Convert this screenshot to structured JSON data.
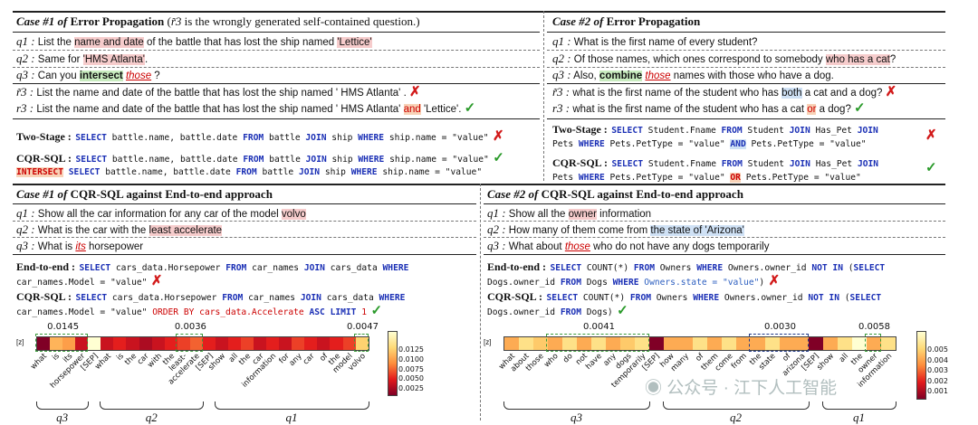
{
  "case1_top": {
    "header_case": "Case #1 of",
    "header_title": "Error Propagation",
    "header_note_pre": "(",
    "header_note_sym": "r̃3",
    "header_note_post": " is the wrongly generated self-contained question.)",
    "q1_label": "q1 :",
    "q1_pre": "List the ",
    "q1_hl": "name and date",
    "q1_mid": " of the battle that has lost the ship named ",
    "q1_hl2": "'Lettice'",
    "q2_label": "q2 :",
    "q2_pre": "Same for ",
    "q2_hl": "'HMS Atlanta'",
    "q2_post": ".",
    "q3_label": "q3 :",
    "q3_pre": "Can you ",
    "q3_hl": "intersect",
    "q3_ref": "those",
    "q3_post": " ?",
    "rt3_label": "r̃3 :",
    "rt3_text": "List the name and date of the battle that has lost the ship named ' HMS Atlanta' .",
    "r3_label": "r3 :",
    "r3_pre": "List the name and date of the battle that has lost the ship named ' HMS Atlanta' ",
    "r3_hl": "and",
    "r3_post": " 'Lettice'.",
    "two_stage_label": "Two-Stage :",
    "cqr_label": "CQR-SQL :"
  },
  "case2_top": {
    "header_case": "Case #2 of",
    "header_title": "Error Propagation",
    "q1_label": "q1 :",
    "q1_text": "What is the first name of every student?",
    "q2_label": "q2 :",
    "q2_pre": "Of those names, which ones correspond to somebody ",
    "q2_hl": "who has a cat",
    "q2_post": "?",
    "q3_label": "q3 :",
    "q3_pre": "Also, ",
    "q3_hl": "combine",
    "q3_ref": "those",
    "q3_post": " names with those who have a dog.",
    "rt3_label": "r̃3 :",
    "rt3_pre": "what is the first name of the student who has ",
    "rt3_hl": "both",
    "rt3_post": " a cat and a dog?",
    "r3_label": "r3 :",
    "r3_pre": "what is the first name of the student who has a cat ",
    "r3_hl": "or",
    "r3_post": " a dog?",
    "two_stage_label": "Two-Stage :",
    "cqr_label": "CQR-SQL :"
  },
  "case1_bottom": {
    "header_case": "Case #1 of",
    "header_title": "CQR-SQL against End-to-end approach",
    "q1_label": "q1 :",
    "q1_pre": "Show all the car information for any car of the model ",
    "q1_hl": "volvo",
    "q2_label": "q2 :",
    "q2_pre": "What is the car with the ",
    "q2_hl": "least accelerate",
    "q3_label": "q3 :",
    "q3_pre": "What is ",
    "q3_ref": "its",
    "q3_post": " horsepower",
    "e2e_label": "End-to-end :",
    "cqr_label": "CQR-SQL :"
  },
  "case2_bottom": {
    "header_case": "Case #2 of",
    "header_title": "CQR-SQL against End-to-end approach",
    "q1_label": "q1 :",
    "q1_pre": "Show all the ",
    "q1_hl": "owner",
    "q1_post": " information",
    "q2_label": "q2 :",
    "q2_pre": "How many of them come from ",
    "q2_hl": "the state of 'Arizona'",
    "q3_label": "q3 :",
    "q3_pre": "What about ",
    "q3_ref": "those",
    "q3_post": " who do not have any dogs temporarily",
    "e2e_label": "End-to-end :",
    "cqr_label": "CQR-SQL :"
  },
  "sql": {
    "c1_two_stage": [
      [
        "SELECT",
        "kw"
      ],
      [
        " battle.name, battle.date ",
        ""
      ],
      [
        "FROM",
        "kw"
      ],
      [
        " battle ",
        ""
      ],
      [
        "JOIN",
        "kw"
      ],
      [
        " ship ",
        ""
      ],
      [
        "WHERE",
        "kw"
      ],
      [
        " ship.name = \"value\"",
        ""
      ]
    ],
    "c1_cqr_l1": [
      [
        "SELECT",
        "kw"
      ],
      [
        " battle.name, battle.date ",
        ""
      ],
      [
        "FROM",
        "kw"
      ],
      [
        " battle ",
        ""
      ],
      [
        "JOIN",
        "kw"
      ],
      [
        " ship ",
        ""
      ],
      [
        "WHERE",
        "kw"
      ],
      [
        " ship.name = \"value\"",
        ""
      ]
    ],
    "c1_cqr_l2": [
      [
        "INTERSECT",
        "red"
      ],
      [
        " ",
        ""
      ],
      [
        "SELECT",
        "kw"
      ],
      [
        " battle.name, battle.date ",
        ""
      ],
      [
        "FROM",
        "kw"
      ],
      [
        " battle ",
        ""
      ],
      [
        "JOIN",
        "kw"
      ],
      [
        " ship ",
        ""
      ],
      [
        "WHERE",
        "kw"
      ],
      [
        " ship.name = \"value\"",
        ""
      ]
    ],
    "c2_two_stage_l1": [
      [
        "SELECT",
        "kw"
      ],
      [
        " Student.Fname ",
        ""
      ],
      [
        "FROM",
        "kw"
      ],
      [
        " Student ",
        ""
      ],
      [
        "JOIN",
        "kw"
      ],
      [
        " Has_Pet ",
        ""
      ],
      [
        "JOIN",
        "kw"
      ]
    ],
    "c2_two_stage_l2": [
      [
        "Pets ",
        ""
      ],
      [
        "WHERE",
        "kw"
      ],
      [
        " Pets.PetType = \"value\" ",
        ""
      ],
      [
        "AND",
        "kwbg"
      ],
      [
        " Pets.PetType = \"value\"",
        ""
      ]
    ],
    "c2_cqr_l1": [
      [
        "SELECT",
        "kw"
      ],
      [
        " Student.Fname ",
        ""
      ],
      [
        "FROM",
        "kw"
      ],
      [
        " Student ",
        ""
      ],
      [
        "JOIN",
        "kw"
      ],
      [
        " Has_Pet ",
        ""
      ],
      [
        "JOIN",
        "kw"
      ]
    ],
    "c2_cqr_l2": [
      [
        "Pets ",
        ""
      ],
      [
        "WHERE",
        "kw"
      ],
      [
        " Pets.PetType = \"value\" ",
        ""
      ],
      [
        "OR",
        "red"
      ],
      [
        " Pets.PetType = \"value\"",
        ""
      ]
    ],
    "c3_e2e_l1": [
      [
        "SELECT",
        "kw"
      ],
      [
        " cars_data.Horsepower ",
        ""
      ],
      [
        "FROM",
        "kw"
      ],
      [
        " car_names ",
        ""
      ],
      [
        "JOIN",
        "kw"
      ],
      [
        " cars_data ",
        ""
      ],
      [
        "WHERE",
        "kw"
      ]
    ],
    "c3_e2e_l2": [
      [
        "car_names.Model = \"value\"",
        ""
      ]
    ],
    "c3_cqr_l1": [
      [
        "SELECT",
        "kw"
      ],
      [
        " cars_data.Horsepower ",
        ""
      ],
      [
        "FROM",
        "kw"
      ],
      [
        " car_names ",
        ""
      ],
      [
        "JOIN",
        "kw"
      ],
      [
        " cars_data ",
        ""
      ],
      [
        "WHERE",
        "kw"
      ]
    ],
    "c3_cqr_l2": [
      [
        "car_names.Model = \"value\" ",
        ""
      ],
      [
        "ORDER BY cars_data.Accelerate ",
        "redplain"
      ],
      [
        "ASC LIMIT",
        "kwdark"
      ],
      [
        " 1",
        "redplain"
      ]
    ],
    "c4_e2e_l1": [
      [
        "SELECT",
        "kw"
      ],
      [
        " COUNT(*) ",
        ""
      ],
      [
        "FROM",
        "kw"
      ],
      [
        " Owners ",
        ""
      ],
      [
        "WHERE",
        "kw"
      ],
      [
        " Owners.owner_id ",
        ""
      ],
      [
        "NOT IN",
        "kw"
      ],
      [
        " (",
        ""
      ],
      [
        "SELECT",
        "kw"
      ]
    ],
    "c4_e2e_l2": [
      [
        "Dogs.owner_id ",
        ""
      ],
      [
        "FROM",
        "kw"
      ],
      [
        " Dogs ",
        ""
      ],
      [
        "WHERE",
        "kw"
      ],
      [
        " Owners.state = \"value\"",
        "blueplain"
      ],
      [
        ")",
        ""
      ]
    ],
    "c4_cqr_l1": [
      [
        "SELECT",
        "kw"
      ],
      [
        " COUNT(*) ",
        ""
      ],
      [
        "FROM",
        "kw"
      ],
      [
        " Owners ",
        ""
      ],
      [
        "WHERE",
        "kw"
      ],
      [
        " Owners.owner_id ",
        ""
      ],
      [
        "NOT IN",
        "kw"
      ],
      [
        " (",
        ""
      ],
      [
        "SELECT",
        "kw"
      ]
    ],
    "c4_cqr_l2": [
      [
        "Dogs.owner_id ",
        ""
      ],
      [
        "FROM",
        "kw"
      ],
      [
        " Dogs)",
        ""
      ]
    ]
  },
  "heatmap_left": {
    "ylabel": "[z]",
    "tokens": [
      "what",
      "is",
      "its",
      "horsepower",
      "[SEP]",
      "what",
      "is",
      "the",
      "car",
      "with",
      "the",
      "least-",
      "accelerate",
      "[SEP]",
      "show",
      "all",
      "the",
      "car",
      "information",
      "for",
      "any",
      "car",
      "of",
      "the",
      "model",
      "volvo"
    ],
    "values": [
      0.0145,
      0.006,
      0.007,
      0.012,
      0.001,
      0.012,
      0.011,
      0.012,
      0.013,
      0.012,
      0.011,
      0.01,
      0.009,
      0.011,
      0.012,
      0.011,
      0.01,
      0.012,
      0.011,
      0.012,
      0.01,
      0.011,
      0.012,
      0.011,
      0.01,
      0.0047
    ],
    "annot": [
      "0.0145",
      "0.0036",
      "0.0047"
    ],
    "groups": [
      "q3",
      "q2",
      "q1"
    ],
    "cbar_ticks": [
      "0.0125",
      "0.0100",
      "0.0075",
      "0.0050",
      "0.0025"
    ]
  },
  "heatmap_right": {
    "ylabel": "[z]",
    "tokens": [
      "what",
      "about",
      "those",
      "who",
      "do",
      "not",
      "have",
      "any",
      "dogs",
      "temporarily",
      "[SEP]",
      "how",
      "many",
      "of",
      "them",
      "come",
      "from",
      "the",
      "state",
      "of",
      "arizona",
      "[SEP]",
      "show",
      "all",
      "the",
      "owner",
      "information"
    ],
    "values": [
      0.003,
      0.002,
      0.0025,
      0.003,
      0.002,
      0.003,
      0.002,
      0.003,
      0.0025,
      0.002,
      0.006,
      0.003,
      0.003,
      0.002,
      0.003,
      0.002,
      0.003,
      0.003,
      0.002,
      0.003,
      0.003,
      0.006,
      0.003,
      0.002,
      0.001,
      0.003,
      0.002
    ],
    "annot": [
      "0.0041",
      "0.0030",
      "0.0058"
    ],
    "groups": [
      "q3",
      "q2",
      "q1"
    ],
    "cbar_ticks": [
      "0.005",
      "0.004",
      "0.003",
      "0.002",
      "0.001"
    ]
  },
  "watermark": "公众号 · 江下人工智能"
}
